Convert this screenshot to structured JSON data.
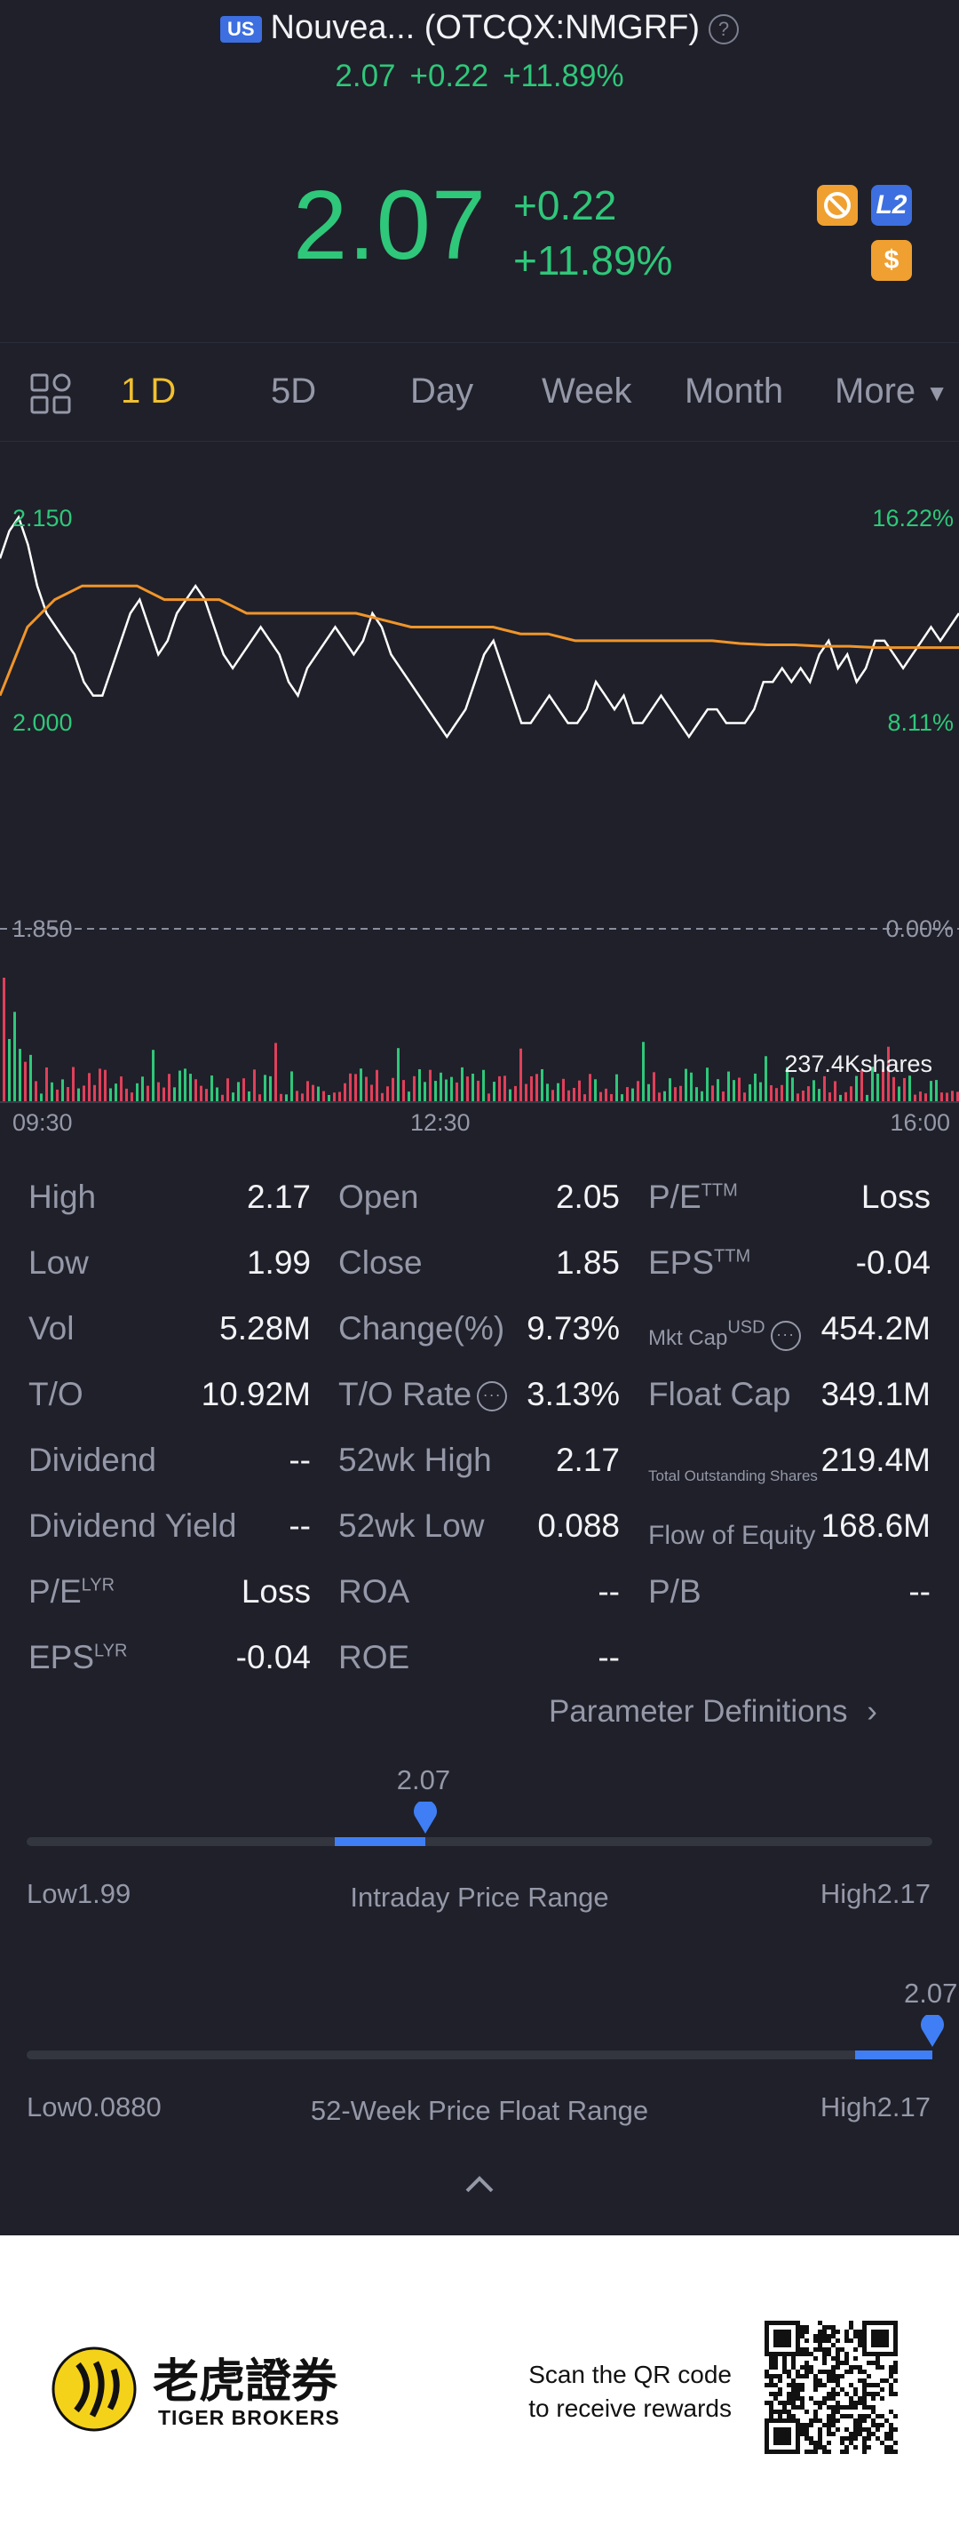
{
  "header": {
    "market_badge": "US",
    "title": "Nouvea... (OTCQX:NMGRF)",
    "price": "2.07",
    "change": "+0.22",
    "change_pct": "+11.89%",
    "badges": [
      {
        "name": "no-sign-badge",
        "color": "#f0a030"
      },
      {
        "name": "level2-badge",
        "label": "L2",
        "color": "#3d6fe0"
      },
      {
        "name": "dollar-badge",
        "label": "$",
        "color": "#f0a030"
      }
    ]
  },
  "tabs": [
    {
      "label": "1 D",
      "active": true
    },
    {
      "label": "5D",
      "active": false
    },
    {
      "label": "Day",
      "active": false
    },
    {
      "label": "Week",
      "active": false
    },
    {
      "label": "Month",
      "active": false
    },
    {
      "label": "More",
      "active": false
    }
  ],
  "chart_data": {
    "type": "line",
    "series": [
      {
        "name": "",
        "color": "#ffffff",
        "values": [
          2.12,
          2.14,
          2.15,
          2.13,
          2.1,
          2.08,
          2.07,
          2.06,
          2.05,
          2.03,
          2.02,
          2.02,
          2.04,
          2.06,
          2.08,
          2.09,
          2.07,
          2.05,
          2.06,
          2.08,
          2.09,
          2.1,
          2.09,
          2.07,
          2.05,
          2.04,
          2.05,
          2.06,
          2.07,
          2.06,
          2.05,
          2.03,
          2.02,
          2.04,
          2.05,
          2.06,
          2.07,
          2.06,
          2.05,
          2.06,
          2.08,
          2.07,
          2.05,
          2.04,
          2.03,
          2.02,
          2.01,
          2.0,
          1.99,
          2.0,
          2.01,
          2.03,
          2.05,
          2.06,
          2.04,
          2.02,
          2.0,
          2.0,
          2.01,
          2.02,
          2.01,
          2.0,
          2.0,
          2.01,
          2.03,
          2.02,
          2.01,
          2.02,
          2.0,
          2.0,
          2.01,
          2.02,
          2.01,
          2.0,
          1.99,
          2.0,
          2.01,
          2.01,
          2.0,
          2.0,
          2.0,
          2.01,
          2.03,
          2.03,
          2.04,
          2.03,
          2.04,
          2.03,
          2.05,
          2.06,
          2.04,
          2.05,
          2.03,
          2.04,
          2.06,
          2.06,
          2.05,
          2.04,
          2.05,
          2.06,
          2.07,
          2.06,
          2.07,
          2.08
        ]
      },
      {
        "name": "",
        "color": "#f0952a",
        "values": [
          2.02,
          2.07,
          2.09,
          2.1,
          2.1,
          2.1,
          2.09,
          2.09,
          2.09,
          2.08,
          2.08,
          2.08,
          2.08,
          2.08,
          2.075,
          2.07,
          2.07,
          2.07,
          2.07,
          2.065,
          2.065,
          2.06,
          2.06,
          2.06,
          2.06,
          2.06,
          2.06,
          2.058,
          2.057,
          2.057,
          2.056,
          2.056,
          2.055,
          2.055,
          2.055,
          2.055
        ]
      }
    ],
    "y_labels_left": [
      "2.150",
      "2.000",
      "1.850"
    ],
    "y_labels_right": [
      "16.22%",
      "8.11%",
      "0.00%"
    ],
    "x_labels": [
      "09:30",
      "12:30",
      "16:00"
    ],
    "ylim": [
      1.85,
      2.15
    ],
    "volume_label": "237.4Kshares",
    "volume_colors": {
      "up": "#2fc77a",
      "down": "#e0405a"
    }
  },
  "stats": {
    "col1": [
      {
        "label": "High",
        "sup": "",
        "value": "2.17"
      },
      {
        "label": "Low",
        "sup": "",
        "value": "1.99"
      },
      {
        "label": "Vol",
        "sup": "",
        "value": "5.28M"
      },
      {
        "label": "T/O",
        "sup": "",
        "value": "10.92M"
      },
      {
        "label": "Dividend",
        "sup": "",
        "value": "--"
      },
      {
        "label": "Dividend Yield",
        "sup": "",
        "value": "--"
      },
      {
        "label": "P/E",
        "sup": "LYR",
        "value": "Loss"
      },
      {
        "label": "EPS",
        "sup": "LYR",
        "value": "-0.04"
      }
    ],
    "col2": [
      {
        "label": "Open",
        "value": "2.05"
      },
      {
        "label": "Close",
        "value": "1.85"
      },
      {
        "label": "Change(%)",
        "value": "9.73%"
      },
      {
        "label": "T/O Rate",
        "value": "3.13%"
      },
      {
        "label": "52wk High",
        "value": "2.17"
      },
      {
        "label": "52wk Low",
        "value": "0.088"
      },
      {
        "label": "ROA",
        "value": "--"
      },
      {
        "label": "ROE",
        "value": "--"
      }
    ],
    "col3": [
      {
        "label": "P/E",
        "sup": "TTM",
        "value": "Loss"
      },
      {
        "label": "EPS",
        "sup": "TTM",
        "value": "-0.04"
      },
      {
        "label": "Mkt Cap",
        "sup": "USD",
        "value": "454.2M"
      },
      {
        "label": "Float Cap",
        "sup": "",
        "value": "349.1M"
      },
      {
        "label": "Total Outstanding Shares",
        "sup": "",
        "value": "219.4M"
      },
      {
        "label": "Flow of Equity",
        "sup": "",
        "value": "168.6M"
      },
      {
        "label": "P/B",
        "sup": "",
        "value": "--"
      }
    ],
    "param_link": "Parameter Definitions"
  },
  "intraday_range": {
    "title": "Intraday Price Range",
    "current": "2.07",
    "low_label": "Low",
    "low": "1.99",
    "high_label": "High",
    "high": "2.17",
    "fill_start": 0.34,
    "fill_end": 0.44
  },
  "week52_range": {
    "title": "52-Week Price Float Range",
    "current": "2.07",
    "low_label": "Low",
    "low": "0.0880",
    "high_label": "High",
    "high": "2.17",
    "fill_start": 0.915,
    "fill_end": 1.0
  },
  "footer": {
    "brand_cn": "老虎證券",
    "brand_en": "TIGER BROKERS",
    "promo_line1": "Scan the QR code",
    "promo_line2": "to receive rewards"
  }
}
